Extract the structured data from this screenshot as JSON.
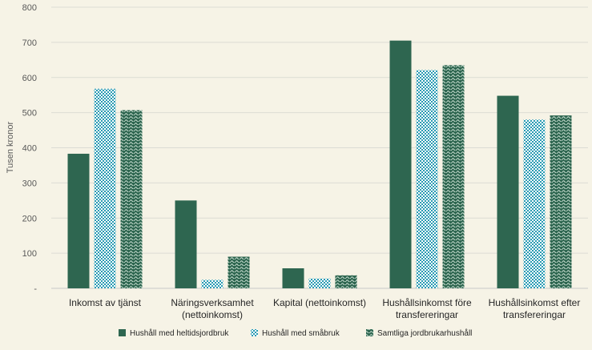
{
  "chart_data": {
    "type": "bar",
    "title": "",
    "xlabel": "",
    "ylabel": "Tusen kronor",
    "ylim": [
      0,
      800
    ],
    "yticks": [
      {
        "value": 0,
        "label": "-"
      },
      {
        "value": 100,
        "label": "100"
      },
      {
        "value": 200,
        "label": "200"
      },
      {
        "value": 300,
        "label": "300"
      },
      {
        "value": 400,
        "label": "400"
      },
      {
        "value": 500,
        "label": "500"
      },
      {
        "value": 600,
        "label": "600"
      },
      {
        "value": 700,
        "label": "700"
      },
      {
        "value": 800,
        "label": "800"
      }
    ],
    "grid": "horizontal",
    "legend_position": "bottom",
    "categories": [
      [
        "Inkomst av tjänst"
      ],
      [
        "Näringsverksamhet",
        "(nettoinkomst)"
      ],
      [
        "Kapital (nettoinkomst)"
      ],
      [
        "Hushållsinkomst före",
        "transfereringar"
      ],
      [
        "Hushållsinkomst efter",
        "transfereringar"
      ]
    ],
    "series": [
      {
        "name": "Hushåll med heltidsjordbruk",
        "values": [
          383,
          250,
          57,
          705,
          548
        ],
        "color": "#2e6650",
        "pattern": "solid"
      },
      {
        "name": "Hushåll med småbruk",
        "values": [
          568,
          24,
          28,
          621,
          480
        ],
        "color": "#2a9bb3",
        "pattern": "checker"
      },
      {
        "name": "Samtliga jordbrukarhushåll",
        "values": [
          507,
          90,
          37,
          635,
          492
        ],
        "color": "#2e6650",
        "pattern": "wave"
      }
    ]
  }
}
